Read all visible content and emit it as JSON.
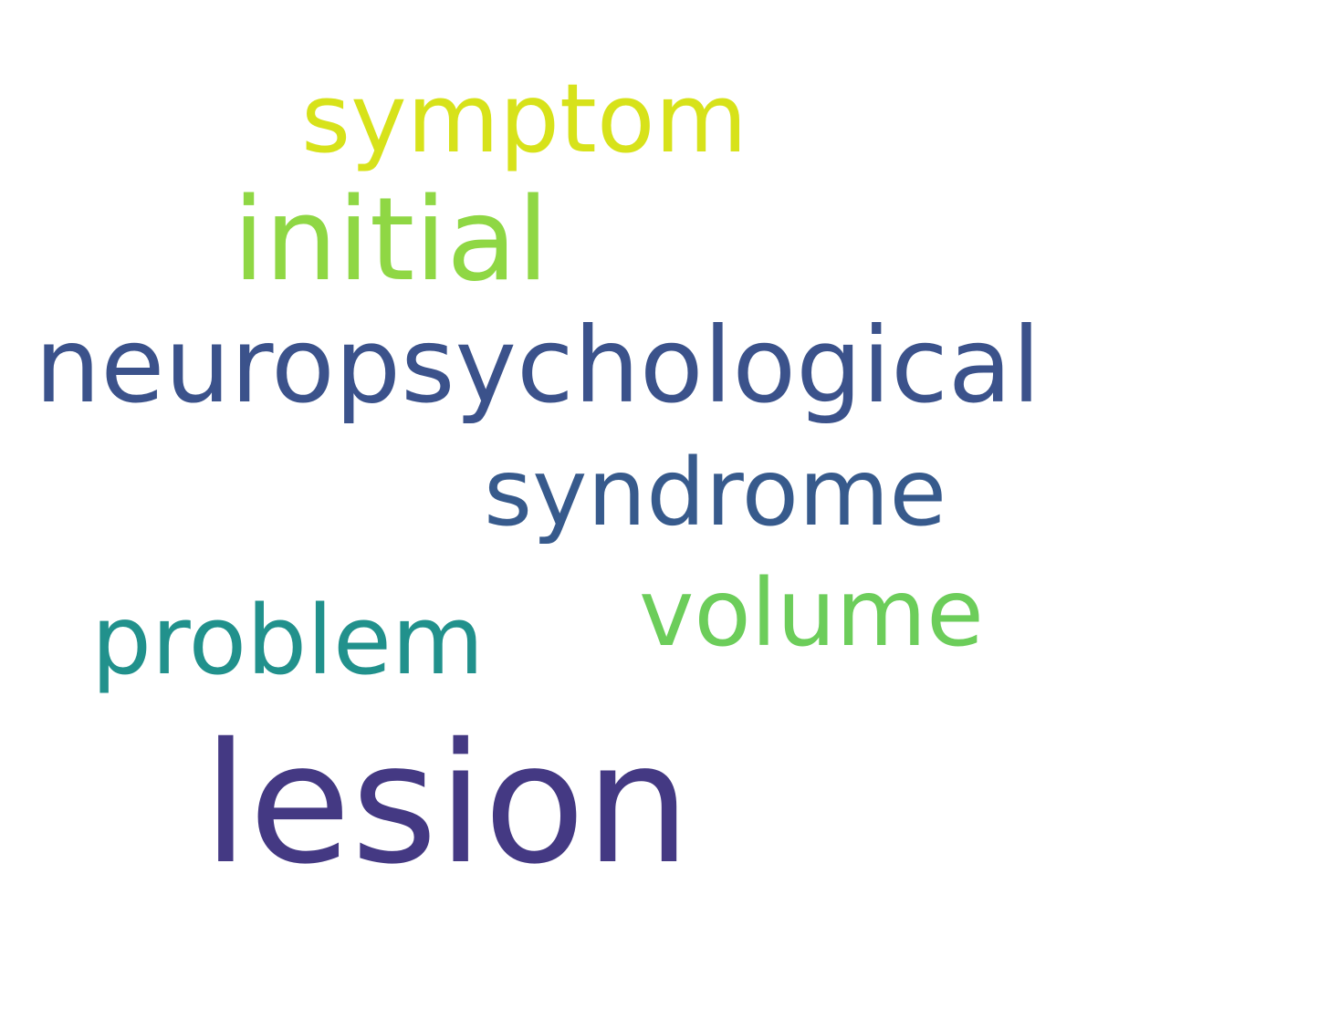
{
  "words": [
    {
      "text": "symptom",
      "color": "#d7e21a"
    },
    {
      "text": "initial",
      "color": "#8fd744"
    },
    {
      "text": "neuropsychological",
      "color": "#3b528b"
    },
    {
      "text": "syndrome",
      "color": "#375a8c"
    },
    {
      "text": "volume",
      "color": "#6ccd5a"
    },
    {
      "text": "problem",
      "color": "#21918c"
    },
    {
      "text": "lesion",
      "color": "#443983"
    }
  ]
}
